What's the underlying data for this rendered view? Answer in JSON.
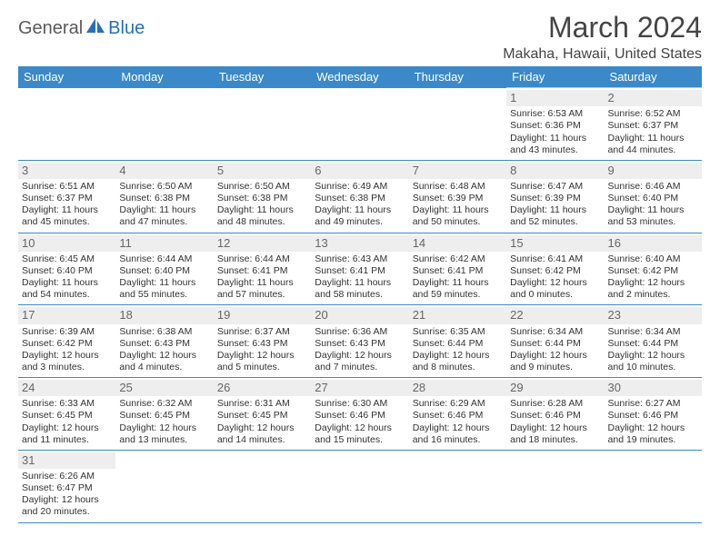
{
  "logo": {
    "part1": "General",
    "part2": "Blue"
  },
  "title": "March 2024",
  "location": "Makaha, Hawaii, United States",
  "colors": {
    "header_bg": "#3b89c9",
    "header_text": "#ffffff",
    "accent_blue": "#2a6fb5",
    "text_gray": "#5a5a5a",
    "daynum_bg": "#eeeeee",
    "border_gray": "#c8c8c8"
  },
  "day_headers": [
    "Sunday",
    "Monday",
    "Tuesday",
    "Wednesday",
    "Thursday",
    "Friday",
    "Saturday"
  ],
  "weeks": [
    [
      null,
      null,
      null,
      null,
      null,
      {
        "n": "1",
        "sr": "Sunrise: 6:53 AM",
        "ss": "Sunset: 6:36 PM",
        "dl": "Daylight: 11 hours and 43 minutes."
      },
      {
        "n": "2",
        "sr": "Sunrise: 6:52 AM",
        "ss": "Sunset: 6:37 PM",
        "dl": "Daylight: 11 hours and 44 minutes."
      }
    ],
    [
      {
        "n": "3",
        "sr": "Sunrise: 6:51 AM",
        "ss": "Sunset: 6:37 PM",
        "dl": "Daylight: 11 hours and 45 minutes."
      },
      {
        "n": "4",
        "sr": "Sunrise: 6:50 AM",
        "ss": "Sunset: 6:38 PM",
        "dl": "Daylight: 11 hours and 47 minutes."
      },
      {
        "n": "5",
        "sr": "Sunrise: 6:50 AM",
        "ss": "Sunset: 6:38 PM",
        "dl": "Daylight: 11 hours and 48 minutes."
      },
      {
        "n": "6",
        "sr": "Sunrise: 6:49 AM",
        "ss": "Sunset: 6:38 PM",
        "dl": "Daylight: 11 hours and 49 minutes."
      },
      {
        "n": "7",
        "sr": "Sunrise: 6:48 AM",
        "ss": "Sunset: 6:39 PM",
        "dl": "Daylight: 11 hours and 50 minutes."
      },
      {
        "n": "8",
        "sr": "Sunrise: 6:47 AM",
        "ss": "Sunset: 6:39 PM",
        "dl": "Daylight: 11 hours and 52 minutes."
      },
      {
        "n": "9",
        "sr": "Sunrise: 6:46 AM",
        "ss": "Sunset: 6:40 PM",
        "dl": "Daylight: 11 hours and 53 minutes."
      }
    ],
    [
      {
        "n": "10",
        "sr": "Sunrise: 6:45 AM",
        "ss": "Sunset: 6:40 PM",
        "dl": "Daylight: 11 hours and 54 minutes."
      },
      {
        "n": "11",
        "sr": "Sunrise: 6:44 AM",
        "ss": "Sunset: 6:40 PM",
        "dl": "Daylight: 11 hours and 55 minutes."
      },
      {
        "n": "12",
        "sr": "Sunrise: 6:44 AM",
        "ss": "Sunset: 6:41 PM",
        "dl": "Daylight: 11 hours and 57 minutes."
      },
      {
        "n": "13",
        "sr": "Sunrise: 6:43 AM",
        "ss": "Sunset: 6:41 PM",
        "dl": "Daylight: 11 hours and 58 minutes."
      },
      {
        "n": "14",
        "sr": "Sunrise: 6:42 AM",
        "ss": "Sunset: 6:41 PM",
        "dl": "Daylight: 11 hours and 59 minutes."
      },
      {
        "n": "15",
        "sr": "Sunrise: 6:41 AM",
        "ss": "Sunset: 6:42 PM",
        "dl": "Daylight: 12 hours and 0 minutes."
      },
      {
        "n": "16",
        "sr": "Sunrise: 6:40 AM",
        "ss": "Sunset: 6:42 PM",
        "dl": "Daylight: 12 hours and 2 minutes."
      }
    ],
    [
      {
        "n": "17",
        "sr": "Sunrise: 6:39 AM",
        "ss": "Sunset: 6:42 PM",
        "dl": "Daylight: 12 hours and 3 minutes."
      },
      {
        "n": "18",
        "sr": "Sunrise: 6:38 AM",
        "ss": "Sunset: 6:43 PM",
        "dl": "Daylight: 12 hours and 4 minutes."
      },
      {
        "n": "19",
        "sr": "Sunrise: 6:37 AM",
        "ss": "Sunset: 6:43 PM",
        "dl": "Daylight: 12 hours and 5 minutes."
      },
      {
        "n": "20",
        "sr": "Sunrise: 6:36 AM",
        "ss": "Sunset: 6:43 PM",
        "dl": "Daylight: 12 hours and 7 minutes."
      },
      {
        "n": "21",
        "sr": "Sunrise: 6:35 AM",
        "ss": "Sunset: 6:44 PM",
        "dl": "Daylight: 12 hours and 8 minutes."
      },
      {
        "n": "22",
        "sr": "Sunrise: 6:34 AM",
        "ss": "Sunset: 6:44 PM",
        "dl": "Daylight: 12 hours and 9 minutes."
      },
      {
        "n": "23",
        "sr": "Sunrise: 6:34 AM",
        "ss": "Sunset: 6:44 PM",
        "dl": "Daylight: 12 hours and 10 minutes."
      }
    ],
    [
      {
        "n": "24",
        "sr": "Sunrise: 6:33 AM",
        "ss": "Sunset: 6:45 PM",
        "dl": "Daylight: 12 hours and 11 minutes."
      },
      {
        "n": "25",
        "sr": "Sunrise: 6:32 AM",
        "ss": "Sunset: 6:45 PM",
        "dl": "Daylight: 12 hours and 13 minutes."
      },
      {
        "n": "26",
        "sr": "Sunrise: 6:31 AM",
        "ss": "Sunset: 6:45 PM",
        "dl": "Daylight: 12 hours and 14 minutes."
      },
      {
        "n": "27",
        "sr": "Sunrise: 6:30 AM",
        "ss": "Sunset: 6:46 PM",
        "dl": "Daylight: 12 hours and 15 minutes."
      },
      {
        "n": "28",
        "sr": "Sunrise: 6:29 AM",
        "ss": "Sunset: 6:46 PM",
        "dl": "Daylight: 12 hours and 16 minutes."
      },
      {
        "n": "29",
        "sr": "Sunrise: 6:28 AM",
        "ss": "Sunset: 6:46 PM",
        "dl": "Daylight: 12 hours and 18 minutes."
      },
      {
        "n": "30",
        "sr": "Sunrise: 6:27 AM",
        "ss": "Sunset: 6:46 PM",
        "dl": "Daylight: 12 hours and 19 minutes."
      }
    ],
    [
      {
        "n": "31",
        "sr": "Sunrise: 6:26 AM",
        "ss": "Sunset: 6:47 PM",
        "dl": "Daylight: 12 hours and 20 minutes."
      },
      null,
      null,
      null,
      null,
      null,
      null
    ]
  ]
}
